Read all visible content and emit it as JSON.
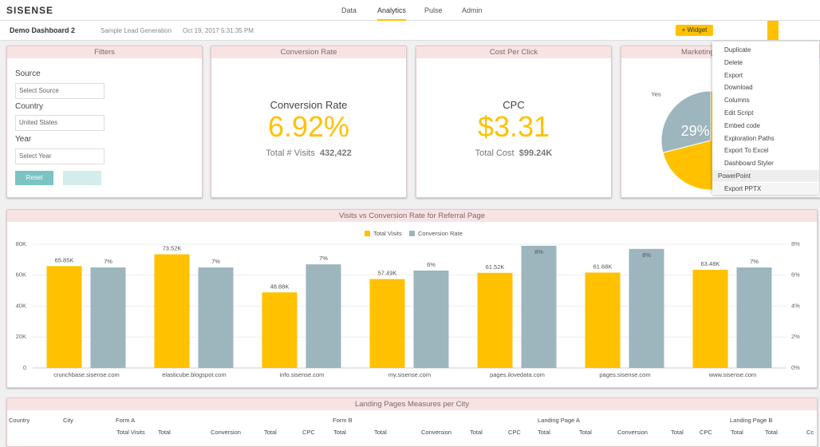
{
  "nav": {
    "logo": "SISENSE",
    "tabs": [
      "Data",
      "Analytics",
      "Pulse",
      "Admin"
    ]
  },
  "toolbar": {
    "dashboard": "Demo Dashboard 2",
    "datasource": "Sample Lead Generation",
    "date": "Oct 19, 2017 5:31:35 PM",
    "add_widget": "Widget"
  },
  "filters": {
    "title": "Filters",
    "fields": [
      {
        "label": "Source",
        "value": "Select Source"
      },
      {
        "label": "Country",
        "value": "United States"
      },
      {
        "label": "Year",
        "value": "Select Year"
      }
    ],
    "reset": "Reset"
  },
  "kpis": [
    {
      "title": "Conversion Rate",
      "label": "Conversion Rate",
      "value": "6.92%",
      "secondary_label": "Total # Visits",
      "secondary_value": "432,422"
    },
    {
      "title": "Cost Per Click",
      "label": "CPC",
      "value": "$3.31",
      "secondary_label": "Total Cost",
      "secondary_value": "$99.24K"
    }
  ],
  "menu": {
    "items": [
      "Duplicate",
      "Delete",
      "Export",
      "Download",
      "Columns",
      "Edit Script",
      "Embed code",
      "Exploration Paths",
      "Export To Excel",
      "Dashboard Styler",
      "PowerPoint",
      "Export PPTX"
    ]
  },
  "chart_data": [
    {
      "type": "bar",
      "title": "Visits vs Conversion Rate for Referral Page",
      "categories": [
        "crunchbase.sisense.com",
        "elasticube.blogspot.com",
        "info.sisense.com",
        "my.sisense.com",
        "pages.ilovedata.com",
        "pages.sisense.com",
        "www.sisense.com"
      ],
      "series": [
        {
          "name": "Total Visits",
          "color": "#ffc100",
          "values": [
            65850,
            73520,
            48880,
            57490,
            61520,
            61680,
            63480
          ],
          "value_labels": [
            "65.85K",
            "73.52K",
            "48.88K",
            "57.49K",
            "61.52K",
            "61.68K",
            "63.48K"
          ]
        },
        {
          "name": "Conversion Rate",
          "color": "#9db5bd",
          "axis": "y2",
          "values": [
            6.5,
            6.5,
            6.7,
            6.3,
            7.9,
            7.7,
            6.5
          ],
          "value_labels": [
            "7%",
            "7%",
            "7%",
            "6%",
            "8%",
            "8%",
            "7%"
          ]
        }
      ],
      "ylim": [
        0,
        80000
      ],
      "yticks": [
        0,
        {
          "value": 20000,
          "label": "20K"
        },
        {
          "value": 40000,
          "label": "40K"
        },
        {
          "value": 60000,
          "label": "60K"
        },
        {
          "value": 80000,
          "label": "80K"
        }
      ],
      "y2lim": [
        0,
        8
      ],
      "y2ticks": [
        {
          "value": 0,
          "label": "0%"
        },
        {
          "value": 2,
          "label": "2%"
        },
        {
          "value": 4,
          "label": "4%"
        },
        {
          "value": 6,
          "label": "6%"
        },
        {
          "value": 8,
          "label": "8%"
        }
      ],
      "grid": true,
      "legend": "top"
    },
    {
      "type": "pie",
      "title": "Marketing",
      "categories": [
        "Yes",
        null
      ],
      "values": [
        29,
        71
      ],
      "value_labels": [
        "29%",
        null
      ],
      "colors": [
        "#9db5bd",
        "#ffc100"
      ]
    }
  ],
  "table": {
    "title": "Landing Pages Measures per City",
    "columns": [
      "Country",
      "City",
      "Form A",
      "Form B",
      "Landing Page A",
      "Landing Page B"
    ],
    "subcolumns": [
      "Total Visits",
      "Total",
      "Conversion",
      "Total",
      "CPC",
      "Total",
      "Total",
      "Conversion",
      "Total",
      "CPC",
      "Total",
      "Total",
      "Conversion",
      "Total",
      "CPC",
      "Total",
      "Total",
      "Cc"
    ]
  }
}
